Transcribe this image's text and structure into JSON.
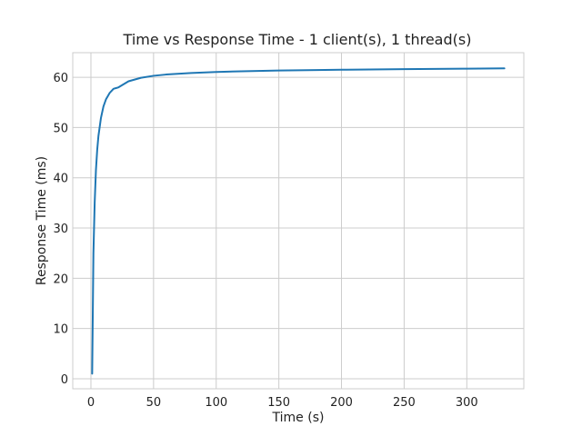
{
  "chart_data": {
    "type": "line",
    "title": "Time vs Response Time - 1 client(s), 1 thread(s)",
    "xlabel": "Time (s)",
    "ylabel": "Response Time (ms)",
    "xlim": [
      -14.5,
      345.5
    ],
    "ylim": [
      -2.0,
      64.9
    ],
    "xticks": [
      0,
      50,
      100,
      150,
      200,
      250,
      300
    ],
    "yticks": [
      0,
      10,
      20,
      30,
      40,
      50,
      60
    ],
    "grid": true,
    "line_color": "#1f77b4",
    "series": [
      {
        "x": [
          1,
          2,
          3,
          4,
          5,
          6,
          8,
          10,
          12,
          15,
          18,
          22,
          30,
          40,
          50,
          60,
          80,
          100,
          120,
          150,
          180,
          200,
          250,
          300,
          330
        ],
        "y": [
          1.0,
          25.0,
          35.0,
          41.5,
          45.5,
          48.3,
          51.9,
          54.2,
          55.6,
          56.9,
          57.7,
          58.0,
          59.2,
          59.9,
          60.3,
          60.55,
          60.85,
          61.05,
          61.2,
          61.35,
          61.45,
          61.5,
          61.62,
          61.72,
          61.77
        ]
      }
    ]
  }
}
